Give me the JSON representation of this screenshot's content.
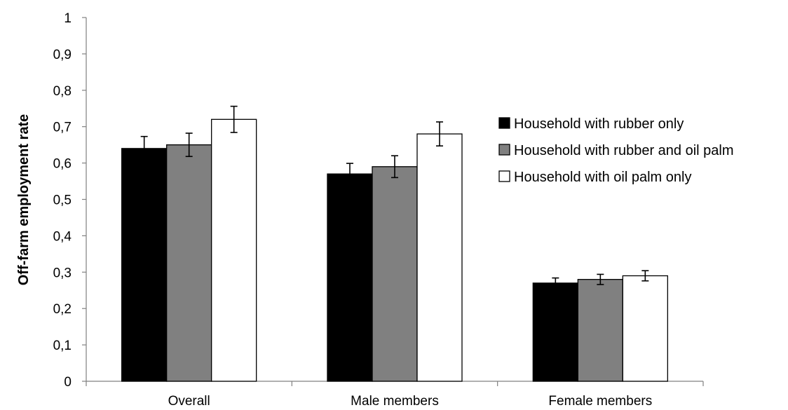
{
  "chart_data": {
    "type": "bar",
    "title": "",
    "xlabel": "",
    "ylabel": "Off-farm employment rate",
    "ylim": [
      0,
      1
    ],
    "yticks": [
      "0",
      "0,1",
      "0,2",
      "0,3",
      "0,4",
      "0,5",
      "0,6",
      "0,7",
      "0,8",
      "0,9",
      "1"
    ],
    "categories": [
      "Overall",
      "Male members",
      "Female members"
    ],
    "grid": false,
    "legend_position": "right",
    "series": [
      {
        "name": "Household with rubber only",
        "color": "#000000",
        "values": [
          0.64,
          0.57,
          0.27
        ],
        "errors": [
          0.033,
          0.029,
          0.014
        ]
      },
      {
        "name": "Household with rubber and oil palm",
        "color": "#808080",
        "values": [
          0.65,
          0.59,
          0.28
        ],
        "errors": [
          0.032,
          0.03,
          0.014
        ]
      },
      {
        "name": "Household with oil palm only",
        "color": "#ffffff",
        "values": [
          0.72,
          0.68,
          0.29
        ],
        "errors": [
          0.036,
          0.033,
          0.014
        ]
      }
    ]
  }
}
